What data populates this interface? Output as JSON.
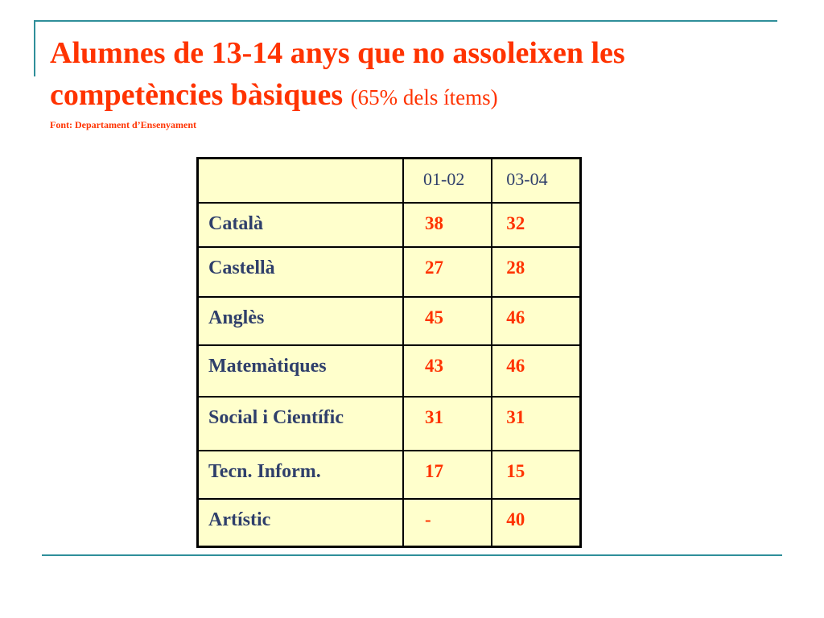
{
  "slide": {
    "title_line1": "Alumnes de 13-14 anys que no assoleixen les",
    "title_line2": "competències bàsiques",
    "subtitle": "(65% dels ítems)",
    "source": "Font: Departament d’Ensenyament"
  },
  "table": {
    "header": [
      "",
      "01-02",
      "03-04"
    ],
    "rows": [
      {
        "subject": "Català",
        "v0102": "38",
        "v0304": "32"
      },
      {
        "subject": "Castellà",
        "v0102": "27",
        "v0304": "28"
      },
      {
        "subject": "Anglès",
        "v0102": "45",
        "v0304": "46"
      },
      {
        "subject": "Matemàtiques",
        "v0102": "43",
        "v0304": "46"
      },
      {
        "subject": "Social i Científic",
        "v0102": "31",
        "v0304": "31"
      },
      {
        "subject": "Tecn. Inform.",
        "v0102": "17",
        "v0304": "15"
      },
      {
        "subject": "Artístic",
        "v0102": "-",
        "v0304": "40"
      }
    ]
  },
  "colors": {
    "accent": "#ff3300",
    "label": "#2f3f6b",
    "table_fill": "#ffffcc",
    "rule": "#2f8f9a"
  }
}
